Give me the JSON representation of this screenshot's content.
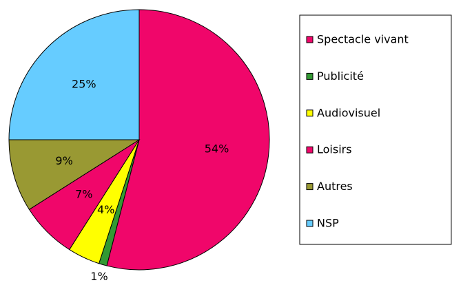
{
  "chart_data": {
    "type": "pie",
    "categories": [
      "Spectacle vivant",
      "Publicité",
      "Audiovisuel",
      "Loisirs",
      "Autres",
      "NSP"
    ],
    "values": [
      54,
      1,
      4,
      7,
      9,
      25
    ],
    "value_labels": [
      "54%",
      "1%",
      "4%",
      "7%",
      "9%",
      "25%"
    ],
    "colors": [
      "#f0066a",
      "#339933",
      "#ffff00",
      "#f0066a",
      "#999933",
      "#66ccff"
    ],
    "legend": "right"
  }
}
